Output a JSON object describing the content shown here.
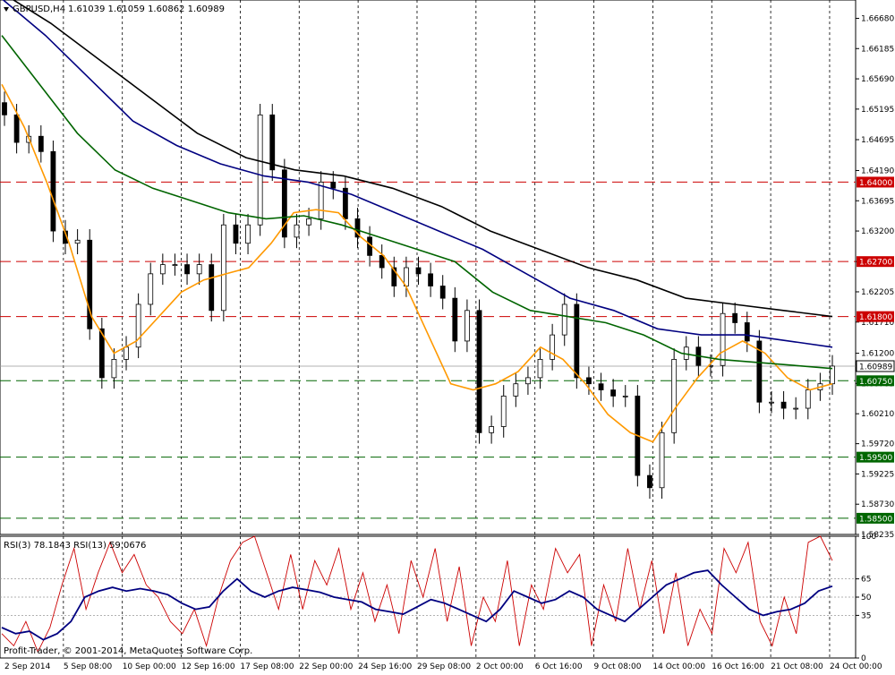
{
  "header": {
    "symbol": "GBPUSD,H4",
    "ohlc": "1.61039 1.61059 1.60862 1.60989",
    "arrow": "triangle-down-icon"
  },
  "rsi_header": "RSI(3) 78.1843  RSI(13) 59.0676",
  "copyright": "Profit-Trader, © 2001-2014, MetaQuotes Software Corp.",
  "colors": {
    "candle": "#000000",
    "ma_fast": "#ff9900",
    "ma_mid": "#006400",
    "ma_slow": "#000080",
    "ma_slowest": "#000000",
    "res_line": "#cc0000",
    "sup_line": "#006600",
    "rsi_fast": "#cc0000",
    "rsi_slow": "#000080"
  },
  "chart_data": [
    {
      "type": "line",
      "title": "GBPUSD,H4",
      "ylim": [
        1.58235,
        1.6698
      ],
      "y_ticks": [
        "1.66680",
        "1.66185",
        "1.65690",
        "1.65195",
        "1.64695",
        "1.64190",
        "1.63695",
        "1.63200",
        "1.62700",
        "1.62205",
        "1.61710",
        "1.61200",
        "1.60705",
        "1.60210",
        "1.59720",
        "1.59225",
        "1.58730",
        "1.58235"
      ],
      "x_ticks": [
        "2 Sep 2014",
        "5 Sep 08:00",
        "10 Sep 00:00",
        "12 Sep 16:00",
        "17 Sep 08:00",
        "22 Sep 00:00",
        "24 Sep 16:00",
        "29 Sep 08:00",
        "2 Oct 00:00",
        "6 Oct 16:00",
        "9 Oct 08:00",
        "14 Oct 00:00",
        "16 Oct 16:00",
        "21 Oct 08:00",
        "24 Oct 00:00"
      ],
      "price_close": [
        1.651,
        1.6465,
        1.6475,
        1.645,
        1.632,
        1.63,
        1.6305,
        1.616,
        1.608,
        1.611,
        1.613,
        1.62,
        1.625,
        1.6265,
        1.6265,
        1.625,
        1.6265,
        1.619,
        1.633,
        1.63,
        1.633,
        1.651,
        1.642,
        1.631,
        1.633,
        1.634,
        1.64,
        1.639,
        1.634,
        1.631,
        1.628,
        1.626,
        1.623,
        1.626,
        1.625,
        1.623,
        1.621,
        1.614,
        1.619,
        1.599,
        1.6,
        1.605,
        1.607,
        1.608,
        1.611,
        1.615,
        1.62,
        1.608,
        1.607,
        1.606,
        1.605,
        1.605,
        1.592,
        1.59,
        1.599,
        1.611,
        1.613,
        1.61,
        1.61,
        1.6185,
        1.617,
        1.614,
        1.604,
        1.604,
        1.603,
        1.603,
        1.606,
        1.607,
        1.6099
      ],
      "support_resistance": [
        {
          "label": "1.64000",
          "value": 1.64,
          "kind": "resistance"
        },
        {
          "label": "1.62700",
          "value": 1.627,
          "kind": "resistance"
        },
        {
          "label": "1.61800",
          "value": 1.618,
          "kind": "resistance"
        },
        {
          "label": "1.60750",
          "value": 1.6075,
          "kind": "support"
        },
        {
          "label": "1.59500",
          "value": 1.595,
          "kind": "support"
        },
        {
          "label": "1.58500",
          "value": 1.585,
          "kind": "support"
        }
      ],
      "current_price": {
        "label": "1.60989",
        "value": 1.60989
      },
      "moving_averages": [
        {
          "color": "ma_fast",
          "values": [
            1.656,
            1.649,
            1.64,
            1.63,
            1.618,
            1.612,
            1.614,
            1.618,
            1.622,
            1.624,
            1.625,
            1.626,
            1.63,
            1.635,
            1.6355,
            1.635,
            1.631,
            1.628,
            1.623,
            1.615,
            1.607,
            1.606,
            1.607,
            1.609,
            1.613,
            1.611,
            1.607,
            1.602,
            1.599,
            1.5975,
            1.603,
            1.608,
            1.612,
            1.614,
            1.612,
            1.608,
            1.606,
            1.607
          ]
        },
        {
          "color": "ma_mid",
          "values": [
            1.664,
            1.656,
            1.648,
            1.642,
            1.639,
            1.637,
            1.635,
            1.634,
            1.6345,
            1.633,
            1.631,
            1.629,
            1.627,
            1.622,
            1.619,
            1.618,
            1.617,
            1.615,
            1.612,
            1.611,
            1.6105,
            1.61,
            1.6095
          ]
        },
        {
          "color": "ma_slow",
          "values": [
            1.67,
            1.664,
            1.657,
            1.65,
            1.646,
            1.643,
            1.641,
            1.64,
            1.638,
            1.635,
            1.632,
            1.629,
            1.625,
            1.621,
            1.619,
            1.616,
            1.615,
            1.615,
            1.614,
            1.613
          ]
        },
        {
          "color": "ma_slowest",
          "values": [
            1.671,
            1.666,
            1.66,
            1.654,
            1.648,
            1.644,
            1.642,
            1.641,
            1.639,
            1.636,
            1.632,
            1.629,
            1.626,
            1.624,
            1.621,
            1.62,
            1.619,
            1.618
          ]
        }
      ]
    },
    {
      "type": "line",
      "title": "RSI(3) 78.1843  RSI(13) 59.0676",
      "ylim": [
        0,
        100
      ],
      "y_ticks": [
        "100",
        "65",
        "50",
        "35",
        "0"
      ],
      "series": [
        {
          "name": "RSI(3)",
          "color": "rsi_fast",
          "values": [
            20,
            10,
            30,
            5,
            25,
            60,
            90,
            40,
            70,
            95,
            70,
            85,
            60,
            50,
            30,
            20,
            40,
            10,
            50,
            80,
            95,
            100,
            70,
            40,
            85,
            40,
            80,
            60,
            90,
            40,
            70,
            30,
            60,
            20,
            80,
            50,
            90,
            30,
            75,
            10,
            50,
            30,
            80,
            10,
            60,
            40,
            90,
            70,
            85,
            10,
            60,
            30,
            90,
            40,
            80,
            20,
            70,
            10,
            40,
            20,
            90,
            70,
            95,
            30,
            10,
            50,
            20,
            95,
            100,
            80
          ]
        },
        {
          "name": "RSI(13)",
          "color": "rsi_slow",
          "values": [
            25,
            20,
            22,
            15,
            20,
            30,
            50,
            55,
            58,
            55,
            57,
            55,
            52,
            45,
            40,
            42,
            55,
            65,
            55,
            50,
            55,
            58,
            56,
            54,
            50,
            48,
            46,
            40,
            38,
            36,
            42,
            48,
            45,
            40,
            35,
            30,
            40,
            55,
            50,
            45,
            48,
            55,
            50,
            40,
            35,
            30,
            40,
            50,
            60,
            65,
            70,
            72,
            60,
            50,
            40,
            35,
            38,
            40,
            45,
            55,
            59
          ]
        }
      ]
    }
  ]
}
